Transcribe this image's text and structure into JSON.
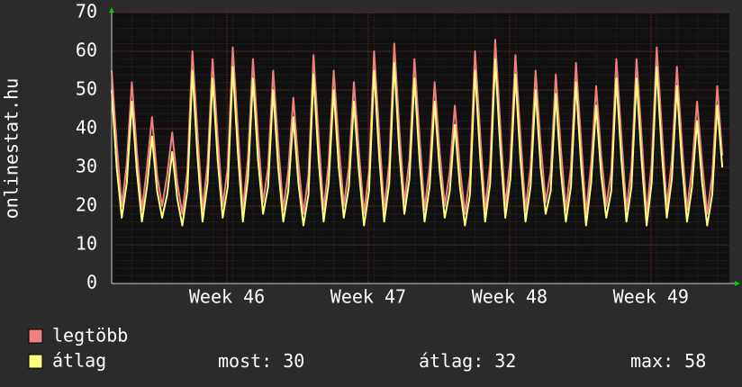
{
  "chart_data": {
    "type": "line",
    "y_label": "onlinestat.hu",
    "x": [
      0,
      0.25,
      0.5,
      0.75,
      1,
      1.25,
      1.5,
      1.75,
      2,
      2.25,
      2.5,
      2.75,
      3,
      3.25,
      3.5,
      3.75,
      4,
      4.25,
      4.5,
      4.75,
      5,
      5.25,
      5.5,
      5.75,
      6,
      6.25,
      6.5,
      6.75,
      7,
      7.25,
      7.5,
      7.75,
      8,
      8.25,
      8.5,
      8.75,
      9,
      9.25,
      9.5,
      9.75,
      10,
      10.25,
      10.5,
      10.75,
      11,
      11.25,
      11.5,
      11.75,
      12,
      12.25,
      12.5,
      12.75,
      13,
      13.25,
      13.5,
      13.75,
      14,
      14.25,
      14.5,
      14.75,
      15,
      15.25,
      15.5,
      15.75,
      16,
      16.25,
      16.5,
      16.75,
      17,
      17.25,
      17.5,
      17.75,
      18,
      18.25,
      18.5,
      18.75,
      19,
      19.25,
      19.5,
      19.75,
      20,
      20.25,
      20.5,
      20.75,
      21,
      21.25,
      21.5,
      21.75,
      22,
      22.25,
      22.5,
      22.75,
      23,
      23.25,
      23.5,
      23.75,
      24,
      24.25,
      24.5,
      24.75,
      25,
      25.25,
      25.5,
      25.75,
      26,
      26.25,
      26.5,
      26.75,
      27,
      27.25,
      27.5,
      27.75,
      28,
      28.25,
      28.5,
      28.75,
      29,
      29.25,
      29.5,
      29.75,
      30,
      30.25
    ],
    "series": [
      {
        "name": "legtöbb",
        "color": "#f08080",
        "values": [
          55,
          36,
          20,
          31,
          52,
          34,
          19,
          30,
          43,
          28,
          20,
          28,
          39,
          26,
          18,
          29,
          60,
          39,
          19,
          31,
          58,
          38,
          20,
          30,
          61,
          40,
          19,
          32,
          58,
          38,
          21,
          30,
          55,
          36,
          19,
          29,
          48,
          31,
          18,
          28,
          59,
          38,
          19,
          31,
          55,
          36,
          20,
          30,
          52,
          34,
          18,
          29,
          60,
          39,
          19,
          31,
          62,
          40,
          21,
          32,
          58,
          38,
          19,
          30,
          52,
          34,
          20,
          29,
          46,
          30,
          18,
          28,
          60,
          39,
          19,
          31,
          63,
          41,
          20,
          32,
          59,
          38,
          19,
          30,
          55,
          36,
          21,
          29,
          54,
          35,
          19,
          30,
          57,
          37,
          18,
          31,
          51,
          33,
          20,
          29,
          58,
          38,
          19,
          30,
          58,
          38,
          18,
          31,
          61,
          40,
          20,
          32,
          56,
          36,
          19,
          30,
          47,
          31,
          18,
          28,
          51,
          33
        ]
      },
      {
        "name": "átlag",
        "color": "#ffff80",
        "values": [
          50,
          30,
          17,
          26,
          47,
          29,
          16,
          25,
          38,
          24,
          17,
          23,
          34,
          22,
          15,
          24,
          55,
          33,
          16,
          26,
          53,
          32,
          17,
          25,
          56,
          34,
          16,
          27,
          53,
          32,
          18,
          25,
          50,
          30,
          16,
          24,
          43,
          26,
          15,
          23,
          54,
          32,
          16,
          26,
          50,
          30,
          17,
          25,
          47,
          29,
          15,
          24,
          55,
          33,
          16,
          26,
          57,
          34,
          18,
          27,
          53,
          32,
          16,
          25,
          47,
          29,
          17,
          24,
          41,
          25,
          15,
          23,
          55,
          33,
          16,
          26,
          58,
          35,
          17,
          27,
          54,
          32,
          16,
          25,
          50,
          30,
          18,
          24,
          49,
          29,
          16,
          25,
          52,
          31,
          15,
          26,
          46,
          28,
          17,
          24,
          53,
          32,
          16,
          25,
          53,
          32,
          15,
          26,
          56,
          34,
          17,
          27,
          51,
          31,
          16,
          25,
          42,
          26,
          15,
          23,
          46,
          30
        ]
      }
    ],
    "xlim": [
      0,
      30.6
    ],
    "xticks": [
      {
        "value": 5.71,
        "label": "Week 46"
      },
      {
        "value": 12.71,
        "label": "Week 47"
      },
      {
        "value": 19.71,
        "label": "Week 48"
      },
      {
        "value": 26.71,
        "label": "Week 49"
      }
    ],
    "ylim": [
      0,
      70
    ],
    "yticks": [
      0,
      10,
      20,
      30,
      40,
      50,
      60,
      70
    ],
    "grid": true,
    "stats": [
      {
        "label": "most:",
        "value": 30
      },
      {
        "label": "átlag:",
        "value": 32
      },
      {
        "label": "max:",
        "value": 58
      }
    ]
  }
}
